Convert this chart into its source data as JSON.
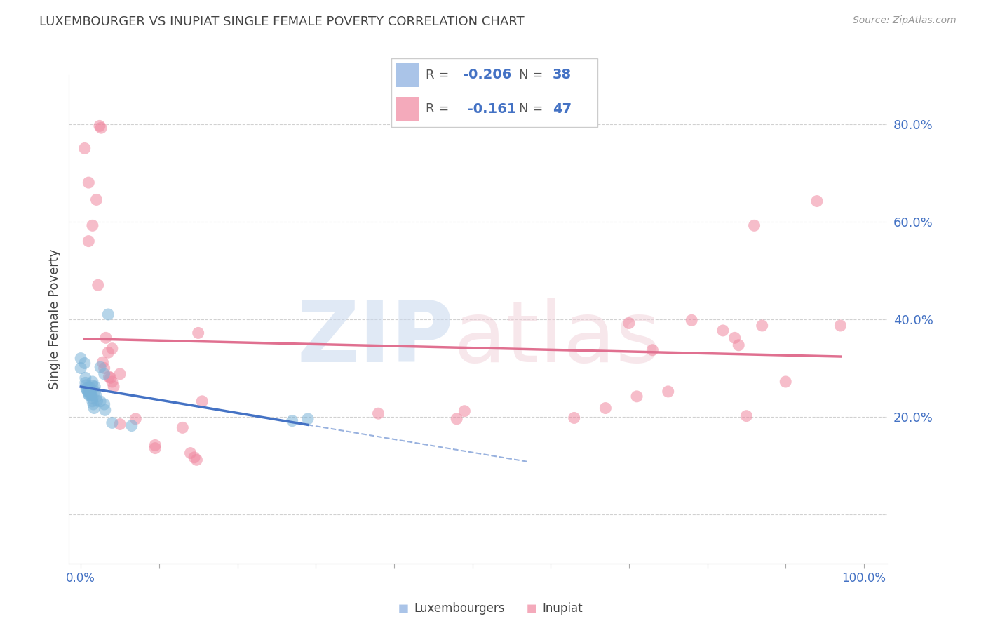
{
  "title": "LUXEMBOURGER VS INUPIAT SINGLE FEMALE POVERTY CORRELATION CHART",
  "source": "Source: ZipAtlas.com",
  "ylabel": "Single Female Poverty",
  "y_ticks": [
    0.0,
    0.2,
    0.4,
    0.6,
    0.8
  ],
  "y_tick_labels": [
    "",
    "20.0%",
    "40.0%",
    "60.0%",
    "80.0%"
  ],
  "lux_color": "#7ab3d8",
  "inupiat_color": "#f088a0",
  "lux_line_color": "#4472c4",
  "inupiat_line_color": "#e07090",
  "lux_legend_color": "#aac4e8",
  "inupiat_legend_color": "#f4aabb",
  "lux_scatter": [
    [
      0.0,
      0.32
    ],
    [
      0.005,
      0.31
    ],
    [
      0.006,
      0.28
    ],
    [
      0.006,
      0.27
    ],
    [
      0.007,
      0.265
    ],
    [
      0.007,
      0.258
    ],
    [
      0.008,
      0.255
    ],
    [
      0.009,
      0.252
    ],
    [
      0.01,
      0.26
    ],
    [
      0.01,
      0.252
    ],
    [
      0.01,
      0.246
    ],
    [
      0.011,
      0.244
    ],
    [
      0.012,
      0.26
    ],
    [
      0.012,
      0.252
    ],
    [
      0.012,
      0.246
    ],
    [
      0.013,
      0.25
    ],
    [
      0.014,
      0.246
    ],
    [
      0.015,
      0.272
    ],
    [
      0.015,
      0.264
    ],
    [
      0.015,
      0.238
    ],
    [
      0.015,
      0.232
    ],
    [
      0.016,
      0.226
    ],
    [
      0.017,
      0.218
    ],
    [
      0.018,
      0.262
    ],
    [
      0.018,
      0.252
    ],
    [
      0.02,
      0.242
    ],
    [
      0.021,
      0.233
    ],
    [
      0.025,
      0.302
    ],
    [
      0.025,
      0.232
    ],
    [
      0.03,
      0.288
    ],
    [
      0.03,
      0.226
    ],
    [
      0.031,
      0.214
    ],
    [
      0.035,
      0.41
    ],
    [
      0.04,
      0.188
    ],
    [
      0.065,
      0.182
    ],
    [
      0.27,
      0.192
    ],
    [
      0.29,
      0.196
    ],
    [
      0.0,
      0.3
    ]
  ],
  "inupiat_scatter": [
    [
      0.005,
      0.75
    ],
    [
      0.01,
      0.68
    ],
    [
      0.01,
      0.56
    ],
    [
      0.015,
      0.592
    ],
    [
      0.02,
      0.645
    ],
    [
      0.022,
      0.47
    ],
    [
      0.024,
      0.796
    ],
    [
      0.026,
      0.792
    ],
    [
      0.028,
      0.312
    ],
    [
      0.03,
      0.3
    ],
    [
      0.032,
      0.362
    ],
    [
      0.035,
      0.332
    ],
    [
      0.036,
      0.282
    ],
    [
      0.038,
      0.28
    ],
    [
      0.04,
      0.272
    ],
    [
      0.04,
      0.34
    ],
    [
      0.042,
      0.262
    ],
    [
      0.05,
      0.288
    ],
    [
      0.05,
      0.185
    ],
    [
      0.07,
      0.196
    ],
    [
      0.095,
      0.142
    ],
    [
      0.095,
      0.136
    ],
    [
      0.13,
      0.178
    ],
    [
      0.14,
      0.126
    ],
    [
      0.145,
      0.117
    ],
    [
      0.148,
      0.112
    ],
    [
      0.15,
      0.372
    ],
    [
      0.155,
      0.232
    ],
    [
      0.38,
      0.207
    ],
    [
      0.48,
      0.196
    ],
    [
      0.49,
      0.212
    ],
    [
      0.63,
      0.198
    ],
    [
      0.67,
      0.218
    ],
    [
      0.7,
      0.392
    ],
    [
      0.71,
      0.242
    ],
    [
      0.73,
      0.337
    ],
    [
      0.75,
      0.252
    ],
    [
      0.78,
      0.398
    ],
    [
      0.82,
      0.377
    ],
    [
      0.835,
      0.362
    ],
    [
      0.84,
      0.347
    ],
    [
      0.85,
      0.202
    ],
    [
      0.86,
      0.592
    ],
    [
      0.87,
      0.387
    ],
    [
      0.9,
      0.272
    ],
    [
      0.94,
      0.642
    ],
    [
      0.97,
      0.387
    ]
  ],
  "xlim": [
    -0.015,
    1.03
  ],
  "ylim": [
    -0.1,
    0.9
  ],
  "background_color": "#ffffff",
  "grid_color": "#cccccc",
  "tick_color": "#4472c4",
  "label_color": "#444444"
}
